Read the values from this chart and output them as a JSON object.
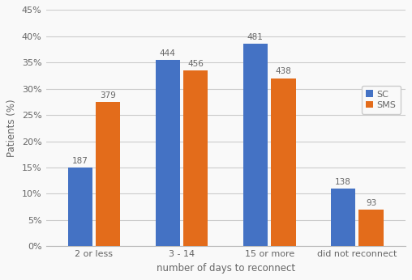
{
  "categories": [
    "2 or less",
    "3 - 14",
    "15 or more",
    "did not reconnect"
  ],
  "sc_values": [
    15.0,
    35.5,
    38.5,
    11.0
  ],
  "sms_values": [
    27.5,
    33.5,
    32.0,
    7.0
  ],
  "sc_labels": [
    "187",
    "444",
    "481",
    "138"
  ],
  "sms_labels": [
    "379",
    "456",
    "438",
    "93"
  ],
  "sc_color": "#4472C4",
  "sms_color": "#E36C1B",
  "xlabel": "number of days to reconnect",
  "ylabel": "Patients (%)",
  "ylim": [
    0,
    45
  ],
  "yticks": [
    0,
    5,
    10,
    15,
    20,
    25,
    30,
    35,
    40,
    45
  ],
  "legend_labels": [
    "SC",
    "SMS"
  ],
  "bar_width": 0.28,
  "bar_gap": 0.04,
  "background_color": "#f9f9f9",
  "plot_bg_color": "#f9f9f9",
  "grid_color": "#cccccc",
  "label_fontsize": 7.5,
  "axis_label_fontsize": 8.5,
  "tick_fontsize": 8,
  "legend_fontsize": 8,
  "text_color": "#666666"
}
